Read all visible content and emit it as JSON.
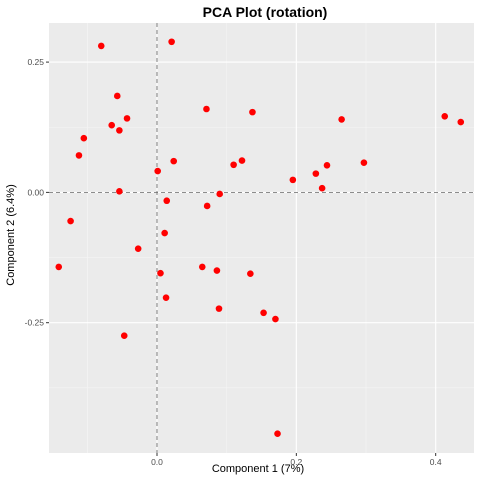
{
  "chart_data": {
    "type": "scatter",
    "title": "PCA Plot (rotation)",
    "xlabel": "Component 1 (7%)",
    "ylabel": "Component 2 (6.4%)",
    "xlim": [
      -0.155,
      0.455
    ],
    "ylim": [
      -0.5,
      0.325
    ],
    "x_ticks": [
      0.0,
      0.2,
      0.4
    ],
    "x_tick_labels": [
      "0.0",
      "0.2",
      "0.4"
    ],
    "y_ticks": [
      -0.25,
      0.0,
      0.25
    ],
    "y_tick_labels": [
      "-0.25",
      "0.00",
      "0.25"
    ],
    "reference_lines": {
      "x": 0,
      "y": 0,
      "style": "dashed"
    },
    "grid": true,
    "point_color": "#ff0000",
    "panel_background": "#ebebeb",
    "series": [
      {
        "points": [
          [
            -0.08,
            0.281
          ],
          [
            0.021,
            0.289
          ],
          [
            -0.057,
            0.185
          ],
          [
            0.071,
            0.16
          ],
          [
            -0.065,
            0.129
          ],
          [
            -0.054,
            0.119
          ],
          [
            -0.043,
            0.142
          ],
          [
            0.137,
            0.154
          ],
          [
            0.265,
            0.14
          ],
          [
            0.413,
            0.146
          ],
          [
            0.436,
            0.135
          ],
          [
            -0.105,
            0.104
          ],
          [
            -0.112,
            0.071
          ],
          [
            0.024,
            0.06
          ],
          [
            0.11,
            0.053
          ],
          [
            0.122,
            0.061
          ],
          [
            0.244,
            0.052
          ],
          [
            0.297,
            0.057
          ],
          [
            0.001,
            0.041
          ],
          [
            0.195,
            0.024
          ],
          [
            0.228,
            0.036
          ],
          [
            0.237,
            0.008
          ],
          [
            -0.054,
            0.002
          ],
          [
            0.09,
            -0.003
          ],
          [
            0.014,
            -0.016
          ],
          [
            0.072,
            -0.026
          ],
          [
            -0.124,
            -0.055
          ],
          [
            0.011,
            -0.078
          ],
          [
            -0.027,
            -0.108
          ],
          [
            -0.141,
            -0.143
          ],
          [
            0.005,
            -0.155
          ],
          [
            0.065,
            -0.143
          ],
          [
            0.086,
            -0.15
          ],
          [
            0.134,
            -0.156
          ],
          [
            0.013,
            -0.202
          ],
          [
            0.089,
            -0.223
          ],
          [
            0.153,
            -0.231
          ],
          [
            0.17,
            -0.243
          ],
          [
            -0.047,
            -0.275
          ],
          [
            0.173,
            -0.463
          ]
        ]
      }
    ]
  }
}
